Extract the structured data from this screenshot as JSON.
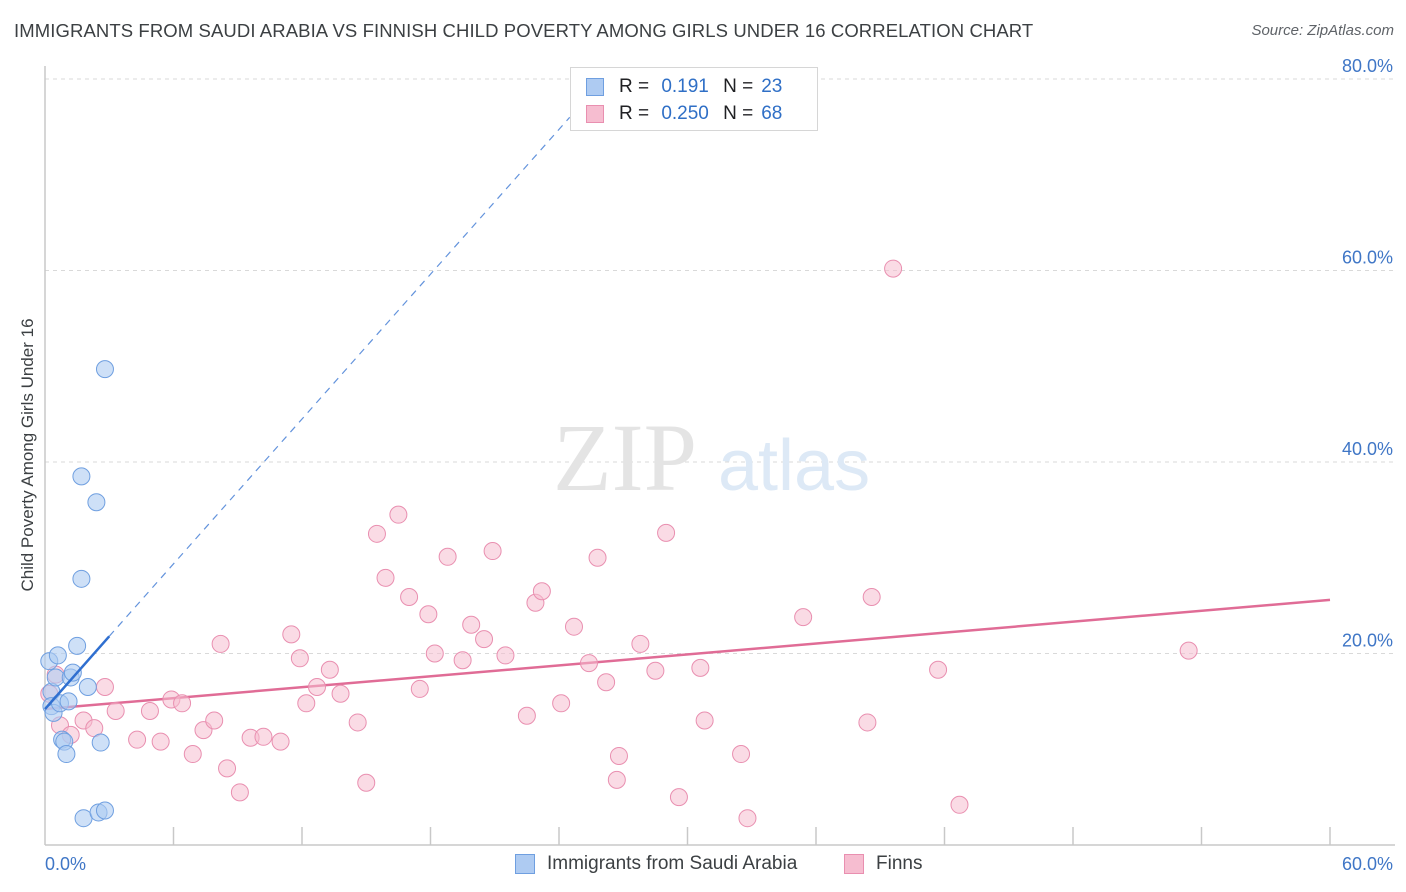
{
  "header": {
    "title": "IMMIGRANTS FROM SAUDI ARABIA VS FINNISH CHILD POVERTY AMONG GIRLS UNDER 16 CORRELATION CHART",
    "source": "Source: ZipAtlas.com"
  },
  "watermark": {
    "zip": "ZIP",
    "atlas": "atlas"
  },
  "legend": {
    "series": [
      {
        "r_label": "R =",
        "r_value": "0.191",
        "n_label": "N =",
        "n_value": "23"
      },
      {
        "r_label": "R =",
        "r_value": "0.250",
        "n_label": "N =",
        "n_value": "68"
      }
    ]
  },
  "colors": {
    "blue_fill": "#aecbf2",
    "blue_stroke": "#6f9fe0",
    "blue_line": "#2f6fd0",
    "pink_fill": "#f6bdd0",
    "pink_stroke": "#e98fb0",
    "pink_line": "#e06c96",
    "axis_text": "#3f76c6",
    "grid": "#d9d9d9"
  },
  "chart_data": {
    "type": "scatter",
    "title": "IMMIGRANTS FROM SAUDI ARABIA VS FINNISH CHILD POVERTY AMONG GIRLS UNDER 16 CORRELATION CHART",
    "xlabel": "",
    "ylabel": "Child Poverty Among Girls Under 16",
    "xlim": [
      0,
      60
    ],
    "ylim": [
      0,
      80
    ],
    "x_tick_labels": [
      "0.0%",
      "60.0%"
    ],
    "y_ticks": [
      20,
      40,
      60,
      80
    ],
    "y_tick_labels": [
      "20.0%",
      "40.0%",
      "60.0%",
      "80.0%"
    ],
    "series": [
      {
        "name": "Immigrants from Saudi Arabia",
        "color": "blue",
        "points": [
          [
            0.2,
            19.2
          ],
          [
            0.3,
            16.0
          ],
          [
            0.3,
            14.5
          ],
          [
            0.4,
            13.8
          ],
          [
            0.5,
            17.5
          ],
          [
            0.6,
            19.8
          ],
          [
            0.7,
            14.8
          ],
          [
            0.8,
            11.0
          ],
          [
            0.9,
            10.8
          ],
          [
            1.0,
            9.5
          ],
          [
            1.1,
            15.0
          ],
          [
            1.2,
            17.5
          ],
          [
            1.3,
            18.0
          ],
          [
            1.5,
            20.8
          ],
          [
            1.7,
            38.5
          ],
          [
            1.7,
            27.8
          ],
          [
            2.0,
            16.5
          ],
          [
            2.4,
            35.8
          ],
          [
            2.6,
            10.7
          ],
          [
            2.8,
            49.7
          ],
          [
            1.8,
            2.8
          ],
          [
            2.5,
            3.4
          ],
          [
            2.8,
            3.6
          ]
        ],
        "trend_solid": {
          "x": [
            0.0,
            3.0
          ],
          "y": [
            14.2,
            21.8
          ]
        },
        "trend_dashed": {
          "x": [
            3.0,
            24.5
          ],
          "y": [
            21.8,
            76.0
          ]
        }
      },
      {
        "name": "Finns",
        "color": "pink",
        "points": [
          [
            0.2,
            15.8
          ],
          [
            0.5,
            17.8
          ],
          [
            0.7,
            12.5
          ],
          [
            1.2,
            11.5
          ],
          [
            1.8,
            13.0
          ],
          [
            2.3,
            12.2
          ],
          [
            2.8,
            16.5
          ],
          [
            3.3,
            14.0
          ],
          [
            4.3,
            11.0
          ],
          [
            4.9,
            14.0
          ],
          [
            5.4,
            10.8
          ],
          [
            5.9,
            15.2
          ],
          [
            6.4,
            14.8
          ],
          [
            6.9,
            9.5
          ],
          [
            7.4,
            12.0
          ],
          [
            7.9,
            13.0
          ],
          [
            8.2,
            21.0
          ],
          [
            8.5,
            8.0
          ],
          [
            9.1,
            5.5
          ],
          [
            9.6,
            11.2
          ],
          [
            10.2,
            11.3
          ],
          [
            11.0,
            10.8
          ],
          [
            11.5,
            22.0
          ],
          [
            11.9,
            19.5
          ],
          [
            12.2,
            14.8
          ],
          [
            12.7,
            16.5
          ],
          [
            13.3,
            18.3
          ],
          [
            13.8,
            15.8
          ],
          [
            14.6,
            12.8
          ],
          [
            15.0,
            6.5
          ],
          [
            15.5,
            32.5
          ],
          [
            15.9,
            27.9
          ],
          [
            16.5,
            34.5
          ],
          [
            17.0,
            25.9
          ],
          [
            17.5,
            16.3
          ],
          [
            17.9,
            24.1
          ],
          [
            18.2,
            20.0
          ],
          [
            18.8,
            30.1
          ],
          [
            19.5,
            19.3
          ],
          [
            19.9,
            23.0
          ],
          [
            20.5,
            21.5
          ],
          [
            20.9,
            30.7
          ],
          [
            21.5,
            19.8
          ],
          [
            22.5,
            13.5
          ],
          [
            22.9,
            25.3
          ],
          [
            23.2,
            26.5
          ],
          [
            24.1,
            14.8
          ],
          [
            24.7,
            22.8
          ],
          [
            25.4,
            19.0
          ],
          [
            25.8,
            30.0
          ],
          [
            26.2,
            17.0
          ],
          [
            26.7,
            6.8
          ],
          [
            26.8,
            9.3
          ],
          [
            27.8,
            21.0
          ],
          [
            28.5,
            18.2
          ],
          [
            29.0,
            32.6
          ],
          [
            29.6,
            5.0
          ],
          [
            30.6,
            18.5
          ],
          [
            30.8,
            13.0
          ],
          [
            32.5,
            9.5
          ],
          [
            32.8,
            2.8
          ],
          [
            35.4,
            23.8
          ],
          [
            38.4,
            12.8
          ],
          [
            38.6,
            25.9
          ],
          [
            39.6,
            60.2
          ],
          [
            41.7,
            18.3
          ],
          [
            42.7,
            4.2
          ],
          [
            53.4,
            20.3
          ]
        ],
        "trend": {
          "x": [
            0.0,
            60.0
          ],
          "y": [
            14.2,
            25.6
          ]
        }
      }
    ],
    "legend_position": "top-center",
    "grid": true
  },
  "bottom_legend": {
    "items": [
      {
        "label": "Immigrants from Saudi Arabia"
      },
      {
        "label": "Finns"
      }
    ]
  }
}
